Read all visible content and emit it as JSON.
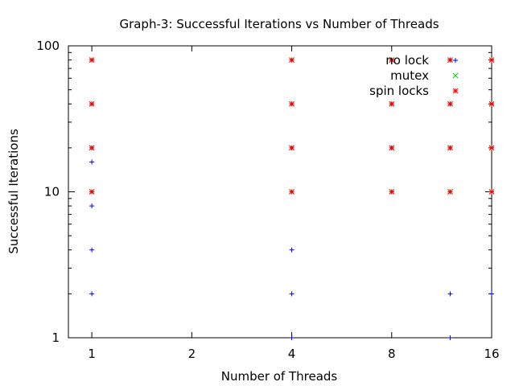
{
  "chart_data": {
    "type": "scatter",
    "title": "Graph-3: Successful Iterations vs Number of Threads",
    "xlabel": "Number of Threads",
    "ylabel": "Successful Iterations",
    "x_scale": "log2",
    "y_scale": "log10",
    "xlim": [
      0.85,
      16
    ],
    "ylim": [
      1,
      100
    ],
    "x_ticks": [
      1,
      2,
      4,
      8,
      16
    ],
    "x_tick_labels": [
      "1",
      "2",
      "4",
      "8",
      "16"
    ],
    "y_ticks": [
      1,
      10,
      100
    ],
    "y_tick_labels": [
      "1",
      "10",
      "100"
    ],
    "grid": false,
    "legend_position": "top-right",
    "series": [
      {
        "name": "no lock",
        "color": "#0000ff",
        "marker": "plus",
        "points": [
          [
            1,
            2
          ],
          [
            1,
            4
          ],
          [
            1,
            8
          ],
          [
            1,
            16
          ],
          [
            1,
            10
          ],
          [
            1,
            20
          ],
          [
            1,
            40
          ],
          [
            1,
            80
          ],
          [
            4,
            1
          ],
          [
            4,
            2
          ],
          [
            4,
            4
          ],
          [
            4,
            10
          ],
          [
            4,
            20
          ],
          [
            4,
            40
          ],
          [
            4,
            80
          ],
          [
            8,
            10
          ],
          [
            8,
            20
          ],
          [
            8,
            40
          ],
          [
            8,
            80
          ],
          [
            12,
            1
          ],
          [
            12,
            2
          ],
          [
            12,
            10
          ],
          [
            12,
            20
          ],
          [
            12,
            40
          ],
          [
            12,
            80
          ],
          [
            16,
            2
          ],
          [
            16,
            10
          ],
          [
            16,
            20
          ],
          [
            16,
            40
          ],
          [
            16,
            80
          ]
        ]
      },
      {
        "name": "mutex",
        "color": "#00cc00",
        "marker": "cross",
        "points": [
          [
            1,
            10
          ],
          [
            1,
            20
          ],
          [
            1,
            40
          ],
          [
            1,
            80
          ],
          [
            4,
            10
          ],
          [
            4,
            20
          ],
          [
            4,
            40
          ],
          [
            4,
            80
          ],
          [
            8,
            10
          ],
          [
            8,
            20
          ],
          [
            8,
            40
          ],
          [
            8,
            80
          ],
          [
            12,
            10
          ],
          [
            12,
            20
          ],
          [
            12,
            40
          ],
          [
            12,
            80
          ],
          [
            16,
            10
          ],
          [
            16,
            20
          ],
          [
            16,
            40
          ],
          [
            16,
            80
          ]
        ]
      },
      {
        "name": "spin locks",
        "color": "#ff0000",
        "marker": "star",
        "points": [
          [
            1,
            10
          ],
          [
            1,
            20
          ],
          [
            1,
            40
          ],
          [
            1,
            80
          ],
          [
            4,
            10
          ],
          [
            4,
            20
          ],
          [
            4,
            40
          ],
          [
            4,
            80
          ],
          [
            8,
            10
          ],
          [
            8,
            20
          ],
          [
            8,
            40
          ],
          [
            8,
            80
          ],
          [
            12,
            10
          ],
          [
            12,
            20
          ],
          [
            12,
            40
          ],
          [
            12,
            80
          ],
          [
            16,
            10
          ],
          [
            16,
            20
          ],
          [
            16,
            40
          ],
          [
            16,
            80
          ]
        ]
      }
    ]
  }
}
